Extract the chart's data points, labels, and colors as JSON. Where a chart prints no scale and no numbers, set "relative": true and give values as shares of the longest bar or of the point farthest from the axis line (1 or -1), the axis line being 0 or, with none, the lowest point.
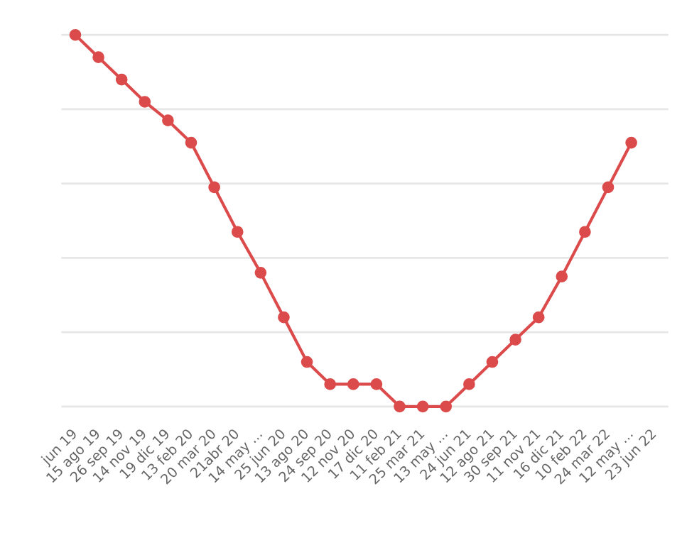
{
  "chart_data": {
    "type": "line",
    "relative": true,
    "grid": "y",
    "marker": "circle",
    "line_style": "solid",
    "categories": [
      "jun 19",
      "15 ago 19",
      "26 sep 19",
      "14 nov 19",
      "19 dic 19",
      "13 feb 20",
      "20 mar 20",
      "21abr 20",
      "14 may ...",
      "25 jun 20",
      "13 ago 20",
      "24 sep 20",
      "12 nov 20",
      "17 dic 20",
      "11 feb 21",
      "25 mar 21",
      "13 may ...",
      "24 jun 21",
      "12 ago 21",
      "30 sep 21",
      "11 nov 21",
      "16 dic 21",
      "10 feb 22",
      "24 mar 22",
      "12 may ...",
      "23 jun 22"
    ],
    "series": [
      {
        "color": "#dc4b4b",
        "values": [
          1.0,
          0.94,
          0.88,
          0.82,
          0.77,
          0.71,
          0.59,
          0.47,
          0.36,
          0.24,
          0.12,
          0.06,
          0.06,
          0.06,
          0,
          0,
          0,
          0.06,
          0.12,
          0.18,
          0.24,
          0.35,
          0.47,
          0.59,
          0.71,
          null
        ]
      }
    ]
  }
}
